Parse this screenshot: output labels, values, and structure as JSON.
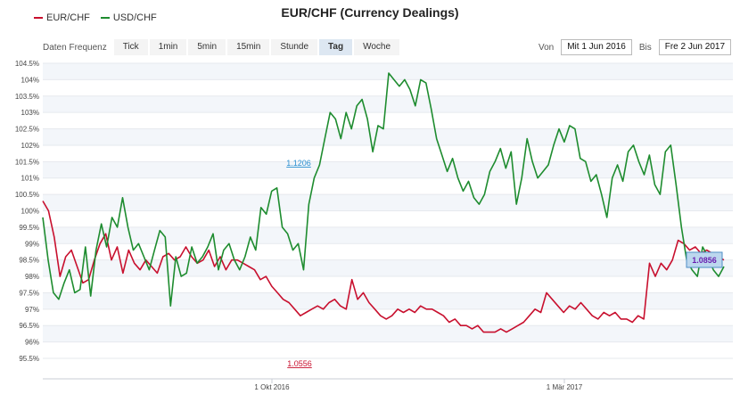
{
  "legend": [
    {
      "label": "EUR/CHF",
      "color": "#c8102e"
    },
    {
      "label": "USD/CHF",
      "color": "#1e8c2f"
    }
  ],
  "chart_data": {
    "type": "line",
    "title": "EUR/CHF (Currency Dealings)",
    "y_ticks": [
      "104.5%",
      "104%",
      "103.5%",
      "103%",
      "102.5%",
      "102%",
      "101.5%",
      "101%",
      "100.5%",
      "100%",
      "99.5%",
      "99%",
      "98.5%",
      "98%",
      "97.5%",
      "97%",
      "96.5%",
      "96%",
      "95.5%"
    ],
    "ylim": [
      95.5,
      104.5
    ],
    "x_ticks": [
      "1 Okt 2016",
      "1 Mär 2017"
    ],
    "grid": true,
    "legend_position": "top-left",
    "annotations": {
      "max_label": "1.1206",
      "min_label": "1.0556",
      "last_label": "1.0856"
    },
    "series": [
      {
        "name": "EUR/CHF",
        "color": "#c8102e",
        "values": [
          100.3,
          100.0,
          99.2,
          98.0,
          98.6,
          98.8,
          98.3,
          97.8,
          97.9,
          98.5,
          99.0,
          99.3,
          98.5,
          98.9,
          98.1,
          98.8,
          98.4,
          98.2,
          98.5,
          98.3,
          98.1,
          98.6,
          98.7,
          98.5,
          98.6,
          98.9,
          98.6,
          98.4,
          98.5,
          98.8,
          98.3,
          98.6,
          98.2,
          98.5,
          98.5,
          98.4,
          98.3,
          98.2,
          97.9,
          98.0,
          97.7,
          97.5,
          97.3,
          97.2,
          97.0,
          96.8,
          96.9,
          97.0,
          97.1,
          97.0,
          97.2,
          97.3,
          97.1,
          97.0,
          97.9,
          97.3,
          97.5,
          97.2,
          97.0,
          96.8,
          96.7,
          96.8,
          97.0,
          96.9,
          97.0,
          96.9,
          97.1,
          97.0,
          97.0,
          96.9,
          96.8,
          96.6,
          96.7,
          96.5,
          96.5,
          96.4,
          96.5,
          96.3,
          96.3,
          96.3,
          96.4,
          96.3,
          96.4,
          96.5,
          96.6,
          96.8,
          97.0,
          96.9,
          97.5,
          97.3,
          97.1,
          96.9,
          97.1,
          97.0,
          97.2,
          97.0,
          96.8,
          96.7,
          96.9,
          96.8,
          96.9,
          96.7,
          96.7,
          96.6,
          96.8,
          96.7,
          98.4,
          98.0,
          98.4,
          98.2,
          98.5,
          99.1,
          99.0,
          98.8,
          98.9,
          98.7,
          98.8,
          98.7,
          98.6,
          98.5
        ]
      },
      {
        "name": "USD/CHF",
        "color": "#1e8c2f",
        "values": [
          99.8,
          98.5,
          97.5,
          97.3,
          97.8,
          98.2,
          97.5,
          97.6,
          98.9,
          97.4,
          98.8,
          99.6,
          98.9,
          99.8,
          99.5,
          100.4,
          99.5,
          98.8,
          99.0,
          98.6,
          98.2,
          98.8,
          99.4,
          99.2,
          97.1,
          98.6,
          98.0,
          98.1,
          98.9,
          98.4,
          98.6,
          98.9,
          99.3,
          98.2,
          98.8,
          99.0,
          98.5,
          98.2,
          98.6,
          99.2,
          98.8,
          100.1,
          99.9,
          100.6,
          100.7,
          99.5,
          99.3,
          98.8,
          99.0,
          98.2,
          100.2,
          101.0,
          101.4,
          102.2,
          103.0,
          102.8,
          102.2,
          103.0,
          102.5,
          103.2,
          103.4,
          102.8,
          101.8,
          102.6,
          102.5,
          104.2,
          104.0,
          103.8,
          104.0,
          103.7,
          103.2,
          104.0,
          103.9,
          103.1,
          102.2,
          101.7,
          101.2,
          101.6,
          101.0,
          100.6,
          100.9,
          100.4,
          100.2,
          100.5,
          101.2,
          101.5,
          101.9,
          101.3,
          101.8,
          100.2,
          101.0,
          102.2,
          101.5,
          101.0,
          101.2,
          101.4,
          102.0,
          102.5,
          102.1,
          102.6,
          102.5,
          101.6,
          101.5,
          100.9,
          101.1,
          100.5,
          99.8,
          101.0,
          101.4,
          100.9,
          101.8,
          102.0,
          101.5,
          101.1,
          101.7,
          100.8,
          100.5,
          101.8,
          102.0,
          100.8,
          99.5,
          98.5,
          98.2,
          98.0,
          98.9,
          98.6,
          98.2,
          98.0,
          98.3
        ]
      }
    ]
  },
  "toolbar": {
    "frequency_label": "Daten Frequenz",
    "frequencies": [
      "Tick",
      "1min",
      "5min",
      "15min",
      "Stunde",
      "Tag",
      "Woche"
    ],
    "active_frequency": "Tag"
  },
  "range": {
    "from_label": "Von",
    "from_value": "Mit 1 Jun 2016",
    "to_label": "Bis",
    "to_value": "Fre 2 Jun 2017"
  }
}
